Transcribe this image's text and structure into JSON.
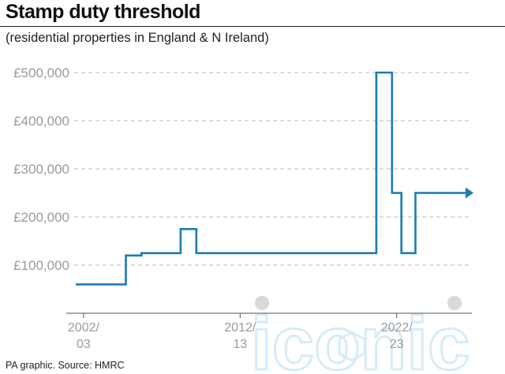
{
  "title": "Stamp duty threshold",
  "subtitle": "(residential properties in England & N Ireland)",
  "footer": "PA graphic. Source: HMRC",
  "watermark": "iconic",
  "colors": {
    "line": "#1a7bb5",
    "grid": "#b9b9b9",
    "axis": "#555555",
    "tick_text": "#9a9a9a",
    "watermark_dot": "#d9d9d9"
  },
  "chart_data": {
    "type": "line",
    "title": "Stamp duty threshold",
    "subtitle": "(residential properties in England & N Ireland)",
    "xlabel": "",
    "ylabel": "",
    "ylim": [
      0,
      500000
    ],
    "xlim": [
      2002.0,
      2027.0
    ],
    "grid": true,
    "step": true,
    "arrow_at_end": true,
    "y_ticks": [
      {
        "value": 100000,
        "label": "£100,000"
      },
      {
        "value": 200000,
        "label": "£200,000"
      },
      {
        "value": 300000,
        "label": "£300,000"
      },
      {
        "value": 400000,
        "label": "£400,000"
      },
      {
        "value": 500000,
        "label": "£500,000"
      }
    ],
    "x_ticks": [
      {
        "value": 2002.5,
        "line1": "2002/",
        "line2": "03"
      },
      {
        "value": 2012.5,
        "line1": "2012/",
        "line2": "13"
      },
      {
        "value": 2022.5,
        "line1": "2022/",
        "line2": "23"
      }
    ],
    "series": [
      {
        "points": [
          [
            2002.0,
            60000
          ],
          [
            2005.2,
            60000
          ],
          [
            2005.2,
            120000
          ],
          [
            2006.2,
            120000
          ],
          [
            2006.2,
            125000
          ],
          [
            2008.7,
            125000
          ],
          [
            2008.7,
            175000
          ],
          [
            2009.7,
            175000
          ],
          [
            2009.7,
            125000
          ],
          [
            2021.2,
            125000
          ],
          [
            2021.2,
            500000
          ],
          [
            2022.2,
            500000
          ],
          [
            2022.2,
            250000
          ],
          [
            2022.8,
            250000
          ],
          [
            2022.8,
            125000
          ],
          [
            2023.7,
            125000
          ],
          [
            2023.7,
            250000
          ],
          [
            2027.0,
            250000
          ]
        ]
      }
    ]
  }
}
